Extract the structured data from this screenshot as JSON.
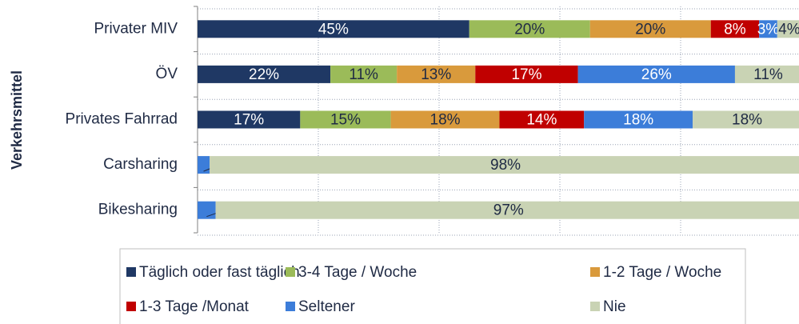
{
  "chart_data": {
    "type": "stacked_barh",
    "y_label": "Verkehrsmittel",
    "categories": [
      "Privater MIV",
      "ÖV",
      "Privates Fahrrad",
      "Carsharing",
      "Bikesharing"
    ],
    "series": [
      {
        "name": "Täglich oder fast täglich",
        "color": "#1f3864",
        "values": [
          45,
          22,
          17,
          null,
          null
        ],
        "value_labels": [
          "45%",
          "22%",
          "17%",
          null,
          null
        ]
      },
      {
        "name": "3-4 Tage / Woche",
        "color": "#9bbb59",
        "values": [
          20,
          11,
          15,
          null,
          null
        ],
        "value_labels": [
          "20%",
          "11%",
          "15%",
          null,
          null
        ]
      },
      {
        "name": "1-2 Tage / Woche",
        "color": "#d99a3c",
        "values": [
          20,
          13,
          18,
          null,
          null
        ],
        "value_labels": [
          "20%",
          "13%",
          "18%",
          null,
          null
        ]
      },
      {
        "name": "1-3 Tage /Monat",
        "color": "#c00000",
        "values": [
          8,
          17,
          14,
          null,
          null
        ],
        "value_labels": [
          "8%",
          "17%",
          "14%",
          null,
          null
        ]
      },
      {
        "name": "Seltener",
        "color": "#3c7dd9",
        "values": [
          3,
          26,
          18,
          2,
          3
        ],
        "value_labels": [
          "3%",
          "26%",
          "18%",
          "2%",
          "3%"
        ]
      },
      {
        "name": "Nie",
        "color": "#c9d3b4",
        "values": [
          4,
          11,
          18,
          98,
          97
        ],
        "value_labels": [
          "4%",
          "11%",
          "18%",
          "98%",
          "97%"
        ]
      }
    ],
    "xlim": [
      0,
      100
    ],
    "xticks": [
      0,
      20,
      40,
      60,
      80,
      100
    ],
    "grid": true
  }
}
